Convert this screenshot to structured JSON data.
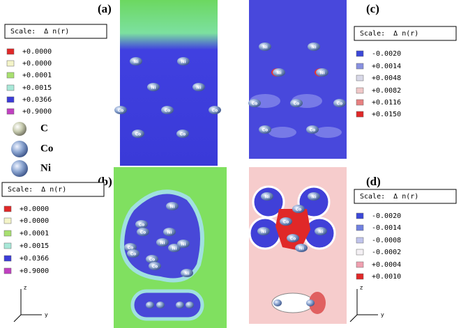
{
  "panels": [
    {
      "label": "(a)",
      "scale": {
        "title": "Scale:  Δ n(r)",
        "entries": [
          {
            "value": "+0.0000",
            "color": "#e02828"
          },
          {
            "value": "+0.0000",
            "color": "#f4f4c8"
          },
          {
            "value": "+0.0001",
            "color": "#a8e070"
          },
          {
            "value": "+0.0015",
            "color": "#a8e8d8"
          },
          {
            "value": "+0.0366",
            "color": "#3c3cd8"
          },
          {
            "value": "+0.9000",
            "color": "#c040c0"
          }
        ]
      },
      "atoms": [
        "Ni",
        "Ni",
        "Ni",
        "Ni",
        "Co",
        "Co",
        "Co",
        "Co",
        "Co"
      ]
    },
    {
      "label": "(b)",
      "scale": {
        "title": "Scale:  Δ n(r)",
        "entries": [
          {
            "value": "+0.0000",
            "color": "#e02828"
          },
          {
            "value": "+0.0000",
            "color": "#f4f4c8"
          },
          {
            "value": "+0.0001",
            "color": "#a8e070"
          },
          {
            "value": "+0.0015",
            "color": "#a8e8d8"
          },
          {
            "value": "+0.0366",
            "color": "#3c3cd8"
          },
          {
            "value": "+0.9000",
            "color": "#c040c0"
          }
        ]
      },
      "atoms": [
        "Ni",
        "Co",
        "Co",
        "Ni",
        "Co",
        "Ni",
        "Ni",
        "Co",
        "Ni",
        "Co",
        "Co",
        "Ni"
      ]
    },
    {
      "label": "(c)",
      "scale": {
        "title": "Scale:  Δ n(r)",
        "entries": [
          {
            "value": "-0.0020",
            "color": "#3c48d8"
          },
          {
            "value": "+0.0014",
            "color": "#8890e0"
          },
          {
            "value": "+0.0048",
            "color": "#d8d8e8"
          },
          {
            "value": "+0.0082",
            "color": "#f0c8c8"
          },
          {
            "value": "+0.0116",
            "color": "#e88080"
          },
          {
            "value": "+0.0150",
            "color": "#e02828"
          }
        ]
      },
      "atoms": [
        "Ni",
        "Ni",
        "Ni",
        "Ni",
        "Co",
        "Co",
        "Co",
        "Co",
        "Co"
      ]
    },
    {
      "label": "(d)",
      "scale": {
        "title": "Scale:  Δ n(r)",
        "entries": [
          {
            "value": "-0.0020",
            "color": "#3c48d8"
          },
          {
            "value": "-0.0014",
            "color": "#7080e0"
          },
          {
            "value": "-0.0008",
            "color": "#c0c4ec"
          },
          {
            "value": "-0.0002",
            "color": "#f4f0f4"
          },
          {
            "value": "+0.0004",
            "color": "#f0a0b0"
          },
          {
            "value": "+0.0010",
            "color": "#e02828"
          }
        ]
      },
      "atoms": [
        "Ni",
        "Ni",
        "Co",
        "Co",
        "Ni",
        "Ni",
        "Co",
        "Ni"
      ]
    }
  ],
  "element_legend": [
    "C",
    "Co",
    "Ni"
  ],
  "axes": [
    {
      "vertical": "z",
      "horizontal": "y"
    },
    {
      "vertical": "z",
      "horizontal": "y"
    }
  ]
}
